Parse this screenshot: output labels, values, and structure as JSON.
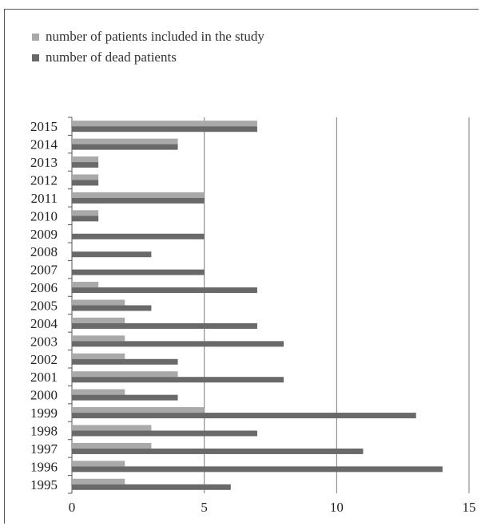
{
  "chart_data": {
    "type": "bar",
    "orientation": "horizontal",
    "categories": [
      "1995",
      "1996",
      "1997",
      "1998",
      "1999",
      "2000",
      "2001",
      "2002",
      "2003",
      "2004",
      "2005",
      "2006",
      "2007",
      "2008",
      "2009",
      "2010",
      "2011",
      "2012",
      "2013",
      "2014",
      "2015"
    ],
    "series": [
      {
        "name": "number of patients included in the study",
        "color": "#a9a9a9",
        "values": [
          2,
          2,
          3,
          3,
          5,
          2,
          4,
          2,
          2,
          2,
          2,
          1,
          0,
          0,
          0,
          1,
          5,
          1,
          1,
          4,
          7
        ]
      },
      {
        "name": "number of dead patients",
        "color": "#696969",
        "values": [
          6,
          14,
          11,
          7,
          13,
          4,
          8,
          4,
          8,
          7,
          3,
          7,
          5,
          3,
          5,
          1,
          5,
          1,
          1,
          4,
          7
        ]
      }
    ],
    "xlim": [
      0,
      15
    ],
    "xticks": [
      "0",
      "5",
      "10",
      "15"
    ],
    "grid": true,
    "legend_position": "top-left",
    "title": "",
    "xlabel": "",
    "ylabel": ""
  }
}
